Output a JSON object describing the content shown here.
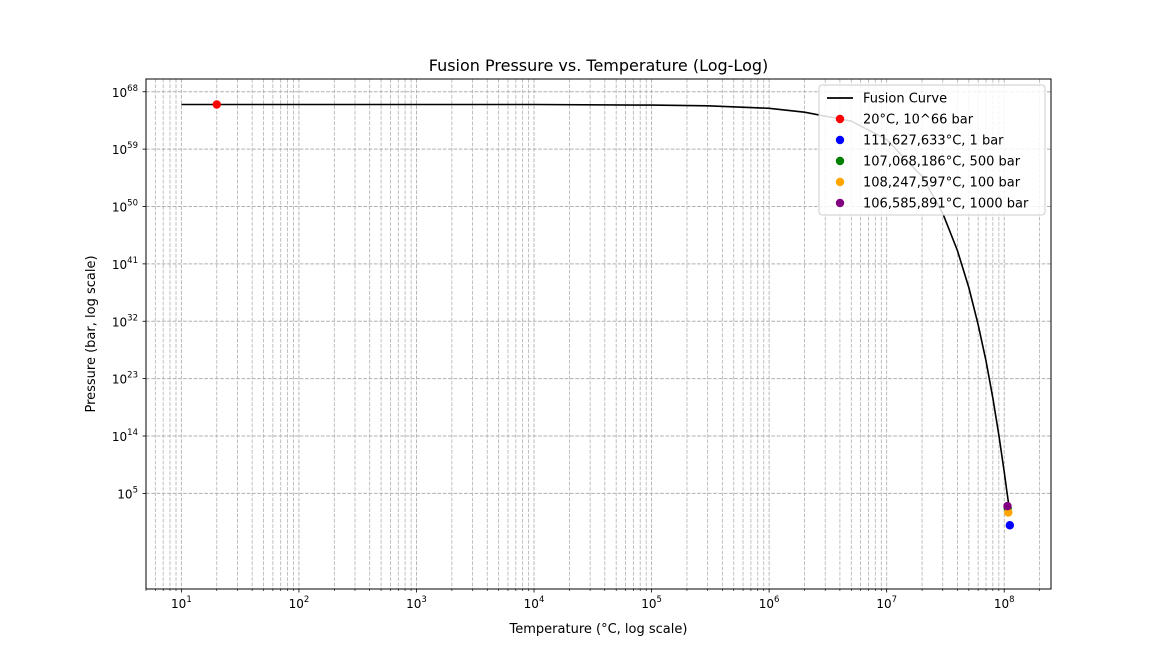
{
  "chart_data": {
    "type": "line",
    "title": "Fusion Pressure vs. Temperature (Log-Log)",
    "xlabel": "Temperature (°C, log scale)",
    "ylabel": "Pressure (bar, log scale)",
    "xscale": "log",
    "yscale": "log",
    "xlim": [
      5,
      250000000
    ],
    "ylim": [
      1e-10,
      10000000000000000000000000000000000000000000000000000000000000000000000
    ],
    "grid": true,
    "legend": "top-right",
    "x_ticks": [
      {
        "base": "10",
        "exp": "1",
        "value": 10
      },
      {
        "base": "10",
        "exp": "2",
        "value": 100
      },
      {
        "base": "10",
        "exp": "3",
        "value": 1000
      },
      {
        "base": "10",
        "exp": "4",
        "value": 10000
      },
      {
        "base": "10",
        "exp": "5",
        "value": 100000
      },
      {
        "base": "10",
        "exp": "6",
        "value": 1000000
      },
      {
        "base": "10",
        "exp": "7",
        "value": 10000000
      },
      {
        "base": "10",
        "exp": "8",
        "value": 100000000
      }
    ],
    "y_ticks": [
      {
        "base": "10",
        "exp": "5",
        "log": 5
      },
      {
        "base": "10",
        "exp": "14",
        "log": 14
      },
      {
        "base": "10",
        "exp": "23",
        "log": 23
      },
      {
        "base": "10",
        "exp": "32",
        "log": 32
      },
      {
        "base": "10",
        "exp": "41",
        "log": 41
      },
      {
        "base": "10",
        "exp": "50",
        "log": 50
      },
      {
        "base": "10",
        "exp": "59",
        "log": 59
      },
      {
        "base": "10",
        "exp": "68",
        "log": 68
      }
    ],
    "series": [
      {
        "name": "Fusion Curve",
        "color": "#000000",
        "style": "line",
        "x": [
          10,
          100,
          1000,
          10000,
          100000,
          300000,
          1000000,
          2000000,
          5000000,
          10000000,
          20000000,
          30000000,
          40000000,
          50000000,
          60000000,
          70000000,
          80000000,
          90000000,
          100000000,
          105000000,
          110000000
        ],
        "y_log": [
          66,
          66,
          66,
          66,
          65.9,
          65.8,
          65.4,
          64.8,
          63.4,
          60.5,
          54.7,
          48.9,
          43.1,
          37.3,
          31.5,
          25.8,
          20.0,
          14.2,
          8.4,
          5.5,
          2.8
        ]
      },
      {
        "name": "20°C, 10^66 bar",
        "color": "#ff0000",
        "style": "point",
        "x": [
          20
        ],
        "y_log": [
          66
        ]
      },
      {
        "name": "111,627,633°C, 1 bar",
        "color": "#0000ff",
        "style": "point",
        "x": [
          111627633
        ],
        "y_log": [
          0
        ]
      },
      {
        "name": "107,068,186°C, 500 bar",
        "color": "#008000",
        "style": "point",
        "x": [
          107068186
        ],
        "y_log": [
          2.7
        ]
      },
      {
        "name": "108,247,597°C, 100 bar",
        "color": "#ffa500",
        "style": "point",
        "x": [
          108247597
        ],
        "y_log": [
          2.0
        ]
      },
      {
        "name": "106,585,891°C, 1000 bar",
        "color": "#800080",
        "style": "point",
        "x": [
          106585891
        ],
        "y_log": [
          3.0
        ]
      }
    ]
  }
}
